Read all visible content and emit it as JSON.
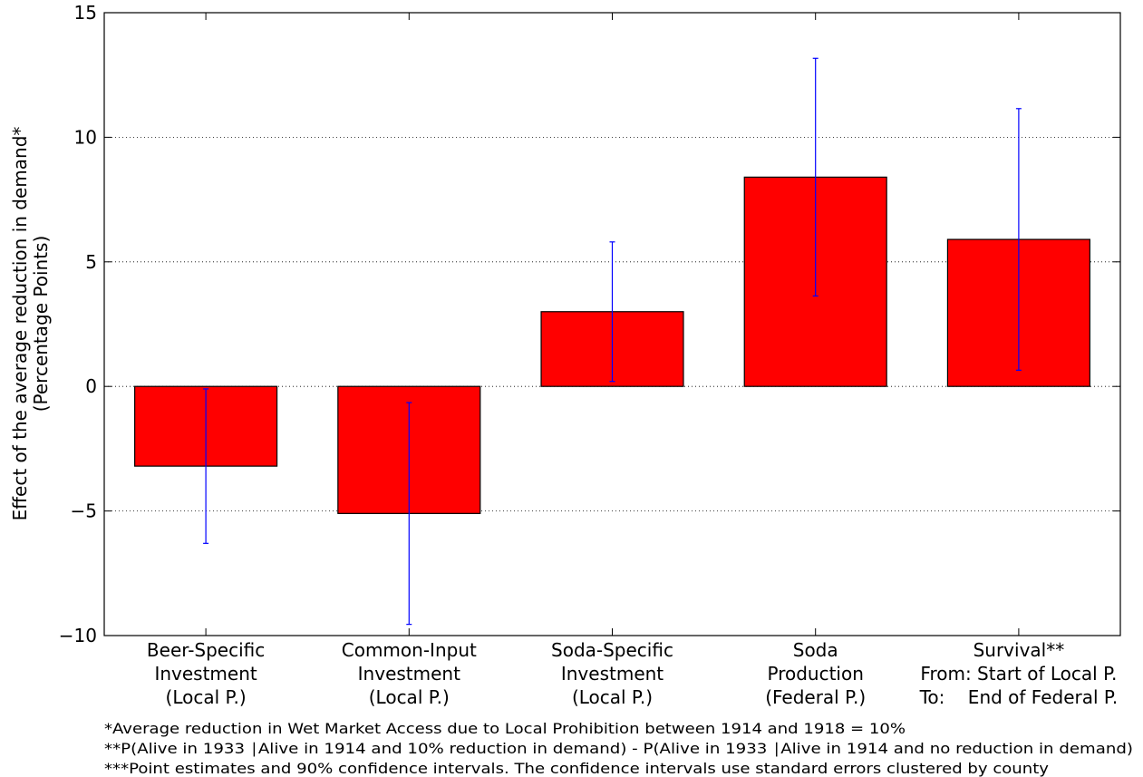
{
  "chart_data": {
    "type": "bar",
    "ylabel": [
      "Effect of the average reduction in demand*",
      "(Percentage Points)"
    ],
    "categories": [
      [
        "Beer-Specific",
        "Investment",
        "(Local P.)"
      ],
      [
        "Common-Input",
        "Investment",
        "(Local P.)"
      ],
      [
        "Soda-Specific",
        "Investment",
        "(Local P.)"
      ],
      [
        "Soda",
        "Production",
        "(Federal P.)"
      ],
      [
        "Survival**",
        "From: Start of Local P.",
        "To:    End of Federal P."
      ]
    ],
    "values": [
      -3.2,
      -5.1,
      3.0,
      8.4,
      5.9
    ],
    "errors": [
      3.1,
      4.45,
      2.8,
      4.77,
      5.25
    ],
    "color": "#ff0000",
    "error_color": "#0000ff",
    "ylim": [
      -10,
      15
    ],
    "yticks": [
      {
        "value": -10,
        "label": "−10"
      },
      {
        "value": -5,
        "label": "−5"
      },
      0,
      5,
      10,
      15
    ],
    "grid": true,
    "notes": [
      "*Average reduction in Wet Market Access due to Local Prohibition between 1914 and 1918 = 10%",
      "**P(Alive in 1933 ∣Alive in 1914 and 10% reduction in demand) - P(Alive in 1933 ∣Alive in 1914 and no reduction in demand)",
      "***Point estimates and 90% confidence intervals. The confidence intervals use standard errors clustered by county"
    ]
  }
}
